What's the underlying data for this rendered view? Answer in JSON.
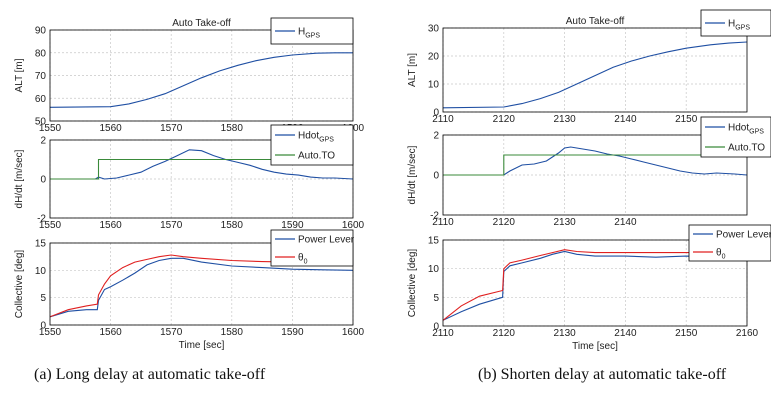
{
  "captions": {
    "a": "(a) Long delay at automatic take-off",
    "b": "(b) Shorten delay at automatic take-off"
  },
  "colors": {
    "blue": "#1f4fa3",
    "green": "#3a8a3a",
    "red": "#e02020",
    "grid": "#c8c8c8",
    "axis": "#000000"
  },
  "chart_data": [
    {
      "figure": "a",
      "panel": "altitude",
      "type": "line",
      "title": "Auto Take-off",
      "xlabel": "",
      "ylabel": "ALT [m]",
      "xlim": [
        1550,
        1600
      ],
      "ylim": [
        50,
        90
      ],
      "xticks": [
        "1550",
        "1560",
        "1570",
        "1580",
        "1590",
        "1600"
      ],
      "yticks": [
        "50",
        "60",
        "70",
        "80",
        "90"
      ],
      "grid": true,
      "legend_position": "top-right",
      "legend": [
        {
          "name": "H",
          "sub": "GPS",
          "color": "blue"
        }
      ],
      "series": [
        {
          "name": "H_GPS",
          "color": "blue",
          "x": [
            1550,
            1560,
            1563,
            1566,
            1569,
            1572,
            1575,
            1578,
            1581,
            1584,
            1587,
            1590,
            1594,
            1597,
            1600
          ],
          "y": [
            56,
            56.3,
            57.5,
            59.5,
            62,
            65.5,
            69,
            72,
            74.5,
            76.5,
            78,
            79,
            79.8,
            80,
            80
          ]
        }
      ]
    },
    {
      "figure": "a",
      "panel": "climb-rate",
      "type": "line",
      "title": "",
      "xlabel": "",
      "ylabel": "dH/dt [m/sec]",
      "xlim": [
        1550,
        1600
      ],
      "ylim": [
        -2,
        2
      ],
      "xticks": [
        "1550",
        "1560",
        "1570",
        "1580",
        "1590",
        "1600"
      ],
      "yticks": [
        "-2",
        "0",
        "2"
      ],
      "grid": true,
      "legend_position": "top-right",
      "legend": [
        {
          "name": "Hdot",
          "sub": "GPS",
          "color": "blue"
        },
        {
          "name": "Auto.TO",
          "sub": "",
          "color": "green"
        }
      ],
      "series": [
        {
          "name": "Hdot_GPS",
          "color": "blue",
          "x": [
            1550,
            1557.5,
            1558,
            1559,
            1561,
            1563,
            1565,
            1567,
            1569,
            1571,
            1573,
            1575,
            1577,
            1579,
            1581,
            1583,
            1585,
            1587,
            1589,
            1591,
            1593,
            1595,
            1597,
            1600
          ],
          "y": [
            0,
            0,
            0.1,
            0,
            0.05,
            0.2,
            0.35,
            0.65,
            0.9,
            1.2,
            1.5,
            1.45,
            1.2,
            1.0,
            0.85,
            0.7,
            0.5,
            0.35,
            0.25,
            0.2,
            0.1,
            0.05,
            0.05,
            0
          ]
        },
        {
          "name": "Auto.TO",
          "color": "green",
          "x": [
            1550,
            1558,
            1558,
            1600
          ],
          "y": [
            0,
            0,
            1,
            1
          ]
        }
      ]
    },
    {
      "figure": "a",
      "panel": "collective",
      "type": "line",
      "title": "",
      "xlabel": "Time [sec]",
      "ylabel": "Collective [deg]",
      "xlim": [
        1550,
        1600
      ],
      "ylim": [
        0,
        15
      ],
      "xticks": [
        "1550",
        "1560",
        "1570",
        "1580",
        "1590",
        "1600"
      ],
      "yticks": [
        "0",
        "5",
        "10",
        "15"
      ],
      "grid": true,
      "legend_position": "top-right",
      "legend": [
        {
          "name": "Power Lever",
          "sub": "",
          "color": "blue"
        },
        {
          "name": "θ",
          "sub": "0",
          "color": "red"
        }
      ],
      "series": [
        {
          "name": "Power Lever",
          "color": "blue",
          "x": [
            1550,
            1553,
            1556,
            1557.8,
            1558,
            1559,
            1560,
            1562,
            1564,
            1566,
            1568,
            1570,
            1572,
            1575,
            1580,
            1585,
            1590,
            1595,
            1600
          ],
          "y": [
            1.5,
            2.5,
            2.8,
            2.8,
            4.5,
            6.5,
            7,
            8.2,
            9.5,
            11,
            11.8,
            12.2,
            12.2,
            11.5,
            10.8,
            10.5,
            10.2,
            10.1,
            10
          ]
        },
        {
          "name": "θ0",
          "color": "red",
          "x": [
            1550,
            1553,
            1556,
            1557.8,
            1558,
            1559,
            1560,
            1562,
            1564,
            1566,
            1568,
            1570,
            1572,
            1575,
            1580,
            1585,
            1590,
            1595,
            1600
          ],
          "y": [
            1.5,
            2.8,
            3.5,
            3.8,
            5.5,
            7.5,
            9,
            10.5,
            11.5,
            12,
            12.5,
            12.8,
            12.5,
            12.2,
            11.8,
            11.6,
            11.5,
            11.5,
            11.5
          ]
        }
      ]
    },
    {
      "figure": "b",
      "panel": "altitude",
      "type": "line",
      "title": "Auto Take-off",
      "xlabel": "",
      "ylabel": "ALT [m]",
      "xlim": [
        2110,
        2160
      ],
      "ylim": [
        0,
        30
      ],
      "xticks": [
        "2110",
        "2120",
        "2130",
        "2140",
        "2150"
      ],
      "yticks": [
        "0",
        "10",
        "20",
        "30"
      ],
      "grid": true,
      "legend_position": "top-right",
      "legend": [
        {
          "name": "H",
          "sub": "GPS",
          "color": "blue"
        }
      ],
      "series": [
        {
          "name": "H_GPS",
          "color": "blue",
          "x": [
            2110,
            2120,
            2123,
            2126,
            2129,
            2132,
            2135,
            2138,
            2141,
            2144,
            2147,
            2150,
            2154,
            2157,
            2160
          ],
          "y": [
            1.5,
            1.8,
            3,
            4.8,
            7,
            10,
            13,
            16,
            18.2,
            20,
            21.5,
            22.8,
            24,
            24.6,
            25
          ]
        }
      ]
    },
    {
      "figure": "b",
      "panel": "climb-rate",
      "type": "line",
      "title": "",
      "xlabel": "",
      "ylabel": "dH/dt [m/sec]",
      "xlim": [
        2110,
        2160
      ],
      "ylim": [
        -2,
        2
      ],
      "xticks": [
        "2110",
        "2120",
        "2130",
        "2140"
      ],
      "yticks": [
        "-2",
        "0",
        "2"
      ],
      "grid": true,
      "legend_position": "top-right",
      "legend": [
        {
          "name": "Hdot",
          "sub": "GPS",
          "color": "blue"
        },
        {
          "name": "Auto.TO",
          "sub": "",
          "color": "green"
        }
      ],
      "series": [
        {
          "name": "Hdot_GPS",
          "color": "blue",
          "x": [
            2110,
            2120,
            2121,
            2123,
            2125,
            2127,
            2129,
            2130,
            2131,
            2133,
            2135,
            2137,
            2139,
            2141,
            2143,
            2145,
            2147,
            2149,
            2151,
            2153,
            2155,
            2158,
            2160
          ],
          "y": [
            0,
            0,
            0.2,
            0.5,
            0.55,
            0.7,
            1.1,
            1.35,
            1.4,
            1.3,
            1.2,
            1.05,
            0.95,
            0.8,
            0.65,
            0.5,
            0.35,
            0.2,
            0.1,
            0.05,
            0.1,
            0.05,
            0
          ]
        },
        {
          "name": "Auto.TO",
          "color": "green",
          "x": [
            2110,
            2120,
            2120,
            2160
          ],
          "y": [
            0,
            0,
            1,
            1
          ]
        }
      ]
    },
    {
      "figure": "b",
      "panel": "collective",
      "type": "line",
      "title": "",
      "xlabel": "Time [sec]",
      "ylabel": "Collective [deg]",
      "xlim": [
        2110,
        2160
      ],
      "ylim": [
        0,
        15
      ],
      "xticks": [
        "2110",
        "2120",
        "2130",
        "2140",
        "2150",
        "2160"
      ],
      "yticks": [
        "0",
        "5",
        "10",
        "15"
      ],
      "grid": true,
      "legend_position": "top-right",
      "legend": [
        {
          "name": "Power Lever",
          "sub": "",
          "color": "blue"
        },
        {
          "name": "θ",
          "sub": "0",
          "color": "red"
        }
      ],
      "series": [
        {
          "name": "Power Lever",
          "color": "blue",
          "x": [
            2110,
            2113,
            2116,
            2119.8,
            2120,
            2121,
            2123,
            2126,
            2128,
            2130,
            2132,
            2135,
            2140,
            2145,
            2150,
            2155,
            2158,
            2160
          ],
          "y": [
            1,
            2.5,
            3.8,
            5,
            9.5,
            10.5,
            11,
            11.8,
            12.5,
            13,
            12.5,
            12.2,
            12.2,
            12,
            12.2,
            12,
            11.5,
            12
          ]
        },
        {
          "name": "θ0",
          "color": "red",
          "x": [
            2110,
            2113,
            2116,
            2119.8,
            2120,
            2121,
            2123,
            2126,
            2128,
            2130,
            2132,
            2135,
            2140,
            2145,
            2150,
            2155,
            2158,
            2160
          ],
          "y": [
            1,
            3.5,
            5.2,
            6.2,
            10,
            11,
            11.5,
            12.3,
            12.8,
            13.3,
            13,
            12.8,
            12.8,
            12.8,
            12.8,
            12.8,
            12.6,
            12.7
          ]
        }
      ]
    }
  ]
}
